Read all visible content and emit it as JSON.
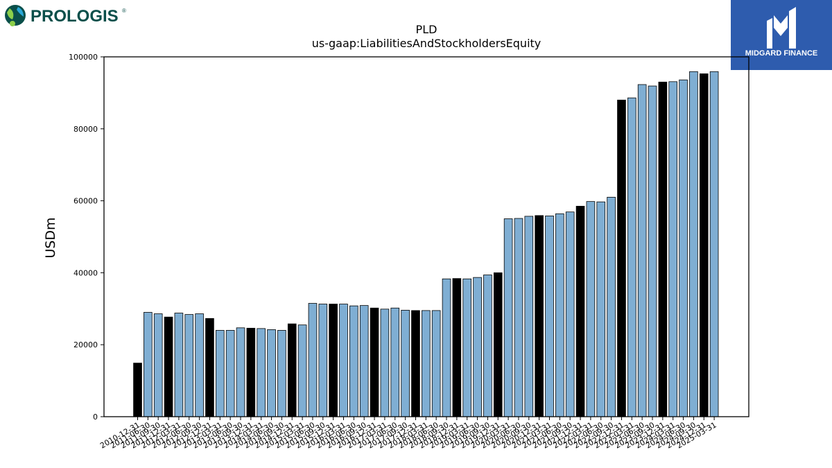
{
  "brand": {
    "company_logo_text": "PROLOGIS",
    "company_logo_mark": "®",
    "partner_logo_text": "MIDGARD FINANCE"
  },
  "colors": {
    "bar_primary": "#7faed3",
    "bar_highlight": "#000000",
    "bar_edge": "#000000",
    "prologis_teal": "#0a4f4a",
    "midgard_blue": "#2e5cae"
  },
  "chart_data": {
    "type": "bar",
    "title": "PLD",
    "subtitle": "us-gaap:LiabilitiesAndStockholdersEquity",
    "xlabel": "",
    "ylabel": "USDm",
    "ylim": [
      0,
      100000
    ],
    "yticks": [
      0,
      20000,
      40000,
      60000,
      80000,
      100000
    ],
    "grid": false,
    "legend": "none",
    "categories": [
      "2010-12-31",
      "2011-06-30",
      "2011-09-30",
      "2011-12-31",
      "2012-03-31",
      "2012-06-30",
      "2012-09-30",
      "2012-12-31",
      "2013-03-31",
      "2013-06-30",
      "2013-09-30",
      "2013-12-31",
      "2014-03-31",
      "2014-06-30",
      "2014-09-30",
      "2014-12-31",
      "2015-03-31",
      "2015-06-30",
      "2015-09-30",
      "2015-12-31",
      "2016-03-31",
      "2016-06-30",
      "2016-09-30",
      "2016-12-31",
      "2017-03-31",
      "2017-06-30",
      "2017-09-30",
      "2017-12-31",
      "2018-03-31",
      "2018-06-30",
      "2018-09-30",
      "2018-12-31",
      "2019-03-31",
      "2019-06-30",
      "2019-09-30",
      "2019-12-31",
      "2020-03-31",
      "2020-06-30",
      "2020-09-30",
      "2020-12-31",
      "2021-03-31",
      "2021-06-30",
      "2021-09-30",
      "2021-12-31",
      "2022-03-31",
      "2022-06-30",
      "2022-09-30",
      "2022-12-31",
      "2023-03-31",
      "2023-06-30",
      "2023-09-30",
      "2023-12-31",
      "2024-03-31",
      "2024-06-30",
      "2024-09-30",
      "2024-12-31",
      "2025-03-31"
    ],
    "values": [
      14900,
      29000,
      28600,
      27700,
      28800,
      28400,
      28600,
      27300,
      24000,
      24000,
      24700,
      24600,
      24500,
      24200,
      24000,
      25800,
      25500,
      31500,
      31300,
      31300,
      31300,
      30800,
      30900,
      30200,
      29900,
      30200,
      29600,
      29500,
      29500,
      29500,
      38300,
      38400,
      38300,
      38700,
      39400,
      40000,
      55000,
      55100,
      55700,
      55900,
      55800,
      56400,
      56900,
      58500,
      59800,
      59700,
      61000,
      88000,
      88600,
      92300,
      91900,
      93000,
      93100,
      93600,
      95900,
      95300,
      95900
    ],
    "highlight_period": "12-31"
  }
}
